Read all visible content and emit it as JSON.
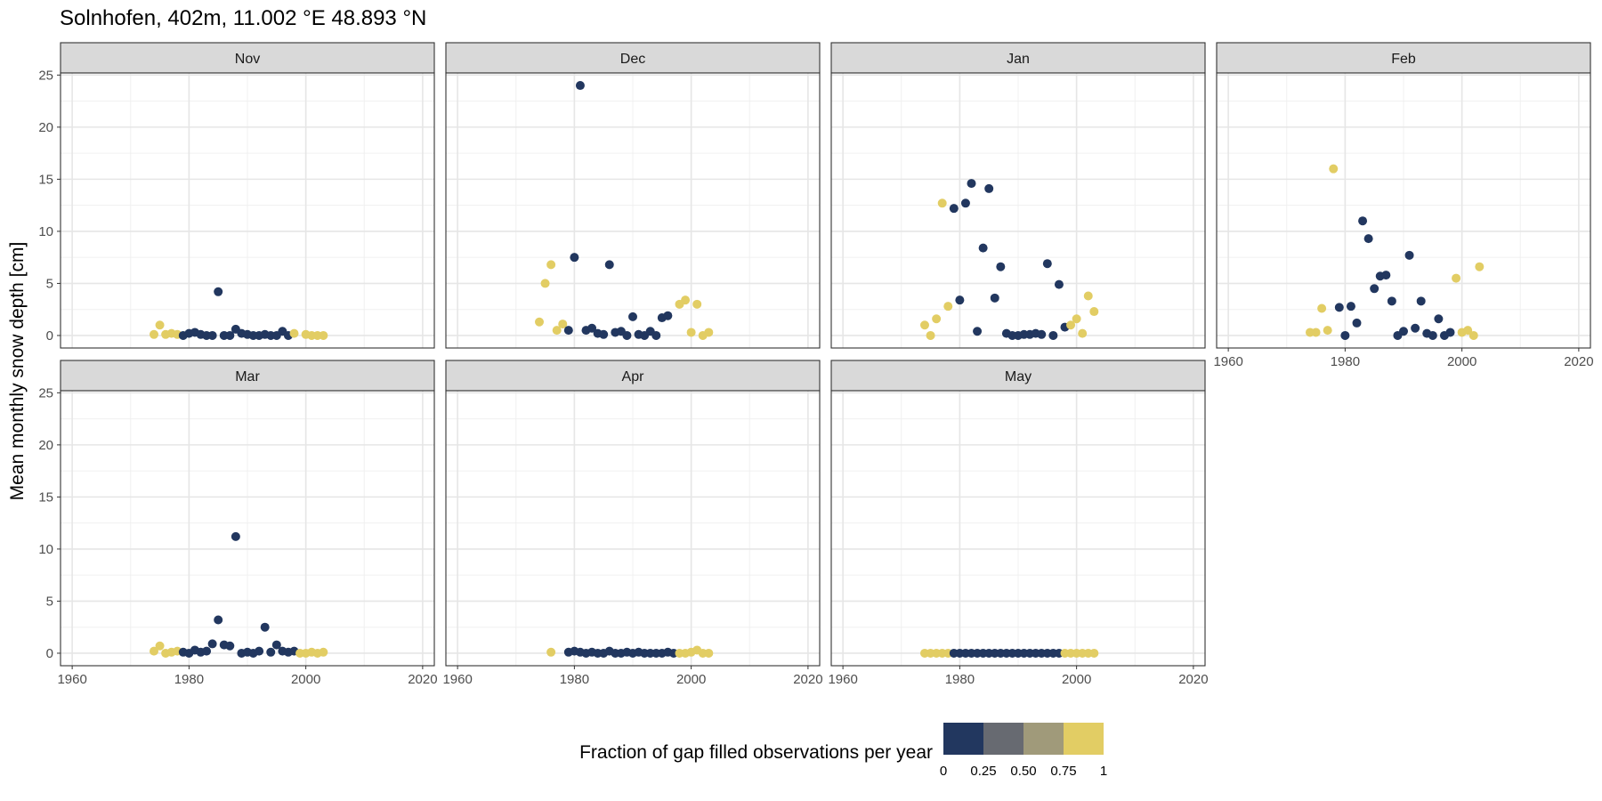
{
  "chart_data": {
    "type": "scatter",
    "title": "Solnhofen, 402m, 11.002 °E 48.893 °N",
    "ylabel": "Mean monthly snow depth [cm]",
    "xlabel": "",
    "xlim": [
      1958,
      2022
    ],
    "ylim": [
      -1.2,
      25.2
    ],
    "x_ticks": [
      1960,
      1980,
      2000,
      2020
    ],
    "y_ticks": [
      0,
      5,
      10,
      15,
      20,
      25
    ],
    "grid": true,
    "legend": {
      "title": "Fraction of gap filled observations per year",
      "placement": "bottom",
      "tick_labels": [
        "0",
        "0.25",
        "0.50",
        "0.75",
        "1"
      ],
      "colors": [
        "#22375f",
        "#676a71",
        "#a09a7a",
        "#e2cd64"
      ]
    },
    "point_colors": {
      "observed": "#22375f",
      "gap_filled": "#e2cd64"
    },
    "panels": [
      {
        "name": "Nov",
        "points": [
          [
            1974,
            0.1,
            1
          ],
          [
            1975,
            1.0,
            1
          ],
          [
            1976,
            0.1,
            1
          ],
          [
            1977,
            0.2,
            1
          ],
          [
            1978,
            0.1,
            1
          ],
          [
            1979,
            0.0,
            0
          ],
          [
            1980,
            0.2,
            0
          ],
          [
            1981,
            0.3,
            0
          ],
          [
            1982,
            0.1,
            0
          ],
          [
            1983,
            0.0,
            0
          ],
          [
            1984,
            0.0,
            0
          ],
          [
            1985,
            4.2,
            0
          ],
          [
            1986,
            0.0,
            0
          ],
          [
            1987,
            0.0,
            0
          ],
          [
            1988,
            0.6,
            0
          ],
          [
            1989,
            0.2,
            0
          ],
          [
            1990,
            0.1,
            0
          ],
          [
            1991,
            0.0,
            0
          ],
          [
            1992,
            0.0,
            0
          ],
          [
            1993,
            0.1,
            0
          ],
          [
            1994,
            0.0,
            0
          ],
          [
            1995,
            0.0,
            0
          ],
          [
            1996,
            0.4,
            0
          ],
          [
            1997,
            0.0,
            0
          ],
          [
            1998,
            0.2,
            1
          ],
          [
            2000,
            0.1,
            1
          ],
          [
            2001,
            0.0,
            1
          ],
          [
            2002,
            0.0,
            1
          ],
          [
            2003,
            0.0,
            1
          ]
        ]
      },
      {
        "name": "Dec",
        "points": [
          [
            1974,
            1.3,
            1
          ],
          [
            1975,
            5.0,
            1
          ],
          [
            1976,
            6.8,
            1
          ],
          [
            1977,
            0.5,
            1
          ],
          [
            1978,
            1.1,
            1
          ],
          [
            1979,
            0.5,
            0
          ],
          [
            1980,
            7.5,
            0
          ],
          [
            1981,
            24.0,
            0
          ],
          [
            1982,
            0.5,
            0
          ],
          [
            1983,
            0.7,
            0
          ],
          [
            1984,
            0.2,
            0
          ],
          [
            1985,
            0.1,
            0
          ],
          [
            1986,
            6.8,
            0
          ],
          [
            1987,
            0.3,
            0
          ],
          [
            1988,
            0.4,
            0
          ],
          [
            1989,
            0.0,
            0
          ],
          [
            1990,
            1.8,
            0
          ],
          [
            1991,
            0.1,
            0
          ],
          [
            1992,
            0.0,
            0
          ],
          [
            1993,
            0.4,
            0
          ],
          [
            1994,
            0.0,
            0
          ],
          [
            1995,
            1.7,
            0
          ],
          [
            1996,
            1.9,
            0
          ],
          [
            1998,
            3.0,
            1
          ],
          [
            1999,
            3.4,
            1
          ],
          [
            2000,
            0.3,
            1
          ],
          [
            2001,
            3.0,
            1
          ],
          [
            2002,
            0.0,
            1
          ],
          [
            2003,
            0.3,
            1
          ]
        ]
      },
      {
        "name": "Jan",
        "points": [
          [
            1974,
            1.0,
            1
          ],
          [
            1975,
            0.0,
            1
          ],
          [
            1976,
            1.6,
            1
          ],
          [
            1977,
            12.7,
            1
          ],
          [
            1978,
            2.8,
            1
          ],
          [
            1979,
            12.2,
            0
          ],
          [
            1980,
            3.4,
            0
          ],
          [
            1981,
            12.7,
            0
          ],
          [
            1982,
            14.6,
            0
          ],
          [
            1983,
            0.4,
            0
          ],
          [
            1984,
            8.4,
            0
          ],
          [
            1985,
            14.1,
            0
          ],
          [
            1986,
            3.6,
            0
          ],
          [
            1987,
            6.6,
            0
          ],
          [
            1988,
            0.2,
            0
          ],
          [
            1989,
            0.0,
            0
          ],
          [
            1990,
            0.0,
            0
          ],
          [
            1991,
            0.1,
            0
          ],
          [
            1992,
            0.1,
            0
          ],
          [
            1993,
            0.2,
            0
          ],
          [
            1994,
            0.1,
            0
          ],
          [
            1995,
            6.9,
            0
          ],
          [
            1996,
            0.0,
            0
          ],
          [
            1997,
            4.9,
            0
          ],
          [
            1998,
            0.8,
            0
          ],
          [
            1999,
            1.0,
            1
          ],
          [
            2000,
            1.6,
            1
          ],
          [
            2001,
            0.2,
            1
          ],
          [
            2002,
            3.8,
            1
          ],
          [
            2003,
            2.3,
            1
          ]
        ]
      },
      {
        "name": "Feb",
        "points": [
          [
            1974,
            0.3,
            1
          ],
          [
            1975,
            0.3,
            1
          ],
          [
            1976,
            2.6,
            1
          ],
          [
            1977,
            0.5,
            1
          ],
          [
            1978,
            16.0,
            1
          ],
          [
            1979,
            2.7,
            0
          ],
          [
            1980,
            0.0,
            0
          ],
          [
            1981,
            2.8,
            0
          ],
          [
            1982,
            1.2,
            0
          ],
          [
            1983,
            11.0,
            0
          ],
          [
            1984,
            9.3,
            0
          ],
          [
            1985,
            4.5,
            0
          ],
          [
            1986,
            5.7,
            0
          ],
          [
            1987,
            5.8,
            0
          ],
          [
            1988,
            3.3,
            0
          ],
          [
            1989,
            0.0,
            0
          ],
          [
            1990,
            0.4,
            0
          ],
          [
            1991,
            7.7,
            0
          ],
          [
            1992,
            0.7,
            0
          ],
          [
            1993,
            3.3,
            0
          ],
          [
            1994,
            0.2,
            0
          ],
          [
            1995,
            0.0,
            0
          ],
          [
            1996,
            1.6,
            0
          ],
          [
            1997,
            0.0,
            0
          ],
          [
            1998,
            0.3,
            0
          ],
          [
            1999,
            5.5,
            1
          ],
          [
            2000,
            0.3,
            1
          ],
          [
            2001,
            0.5,
            1
          ],
          [
            2002,
            0.0,
            1
          ],
          [
            2003,
            6.6,
            1
          ]
        ]
      },
      {
        "name": "Mar",
        "points": [
          [
            1974,
            0.2,
            1
          ],
          [
            1975,
            0.7,
            1
          ],
          [
            1976,
            0.0,
            1
          ],
          [
            1977,
            0.1,
            1
          ],
          [
            1978,
            0.2,
            1
          ],
          [
            1979,
            0.1,
            0
          ],
          [
            1980,
            0.0,
            0
          ],
          [
            1981,
            0.3,
            0
          ],
          [
            1982,
            0.1,
            0
          ],
          [
            1983,
            0.2,
            0
          ],
          [
            1984,
            0.9,
            0
          ],
          [
            1985,
            3.2,
            0
          ],
          [
            1986,
            0.8,
            0
          ],
          [
            1987,
            0.7,
            0
          ],
          [
            1988,
            11.2,
            0
          ],
          [
            1989,
            0.0,
            0
          ],
          [
            1990,
            0.1,
            0
          ],
          [
            1991,
            0.0,
            0
          ],
          [
            1992,
            0.2,
            0
          ],
          [
            1993,
            2.5,
            0
          ],
          [
            1994,
            0.1,
            0
          ],
          [
            1995,
            0.8,
            0
          ],
          [
            1996,
            0.2,
            0
          ],
          [
            1997,
            0.1,
            0
          ],
          [
            1998,
            0.2,
            0
          ],
          [
            1999,
            0.0,
            1
          ],
          [
            2000,
            0.0,
            1
          ],
          [
            2001,
            0.1,
            1
          ],
          [
            2002,
            0.0,
            1
          ],
          [
            2003,
            0.1,
            1
          ]
        ]
      },
      {
        "name": "Apr",
        "points": [
          [
            1976,
            0.1,
            1
          ],
          [
            1979,
            0.1,
            0
          ],
          [
            1980,
            0.2,
            0
          ],
          [
            1981,
            0.1,
            0
          ],
          [
            1982,
            0.0,
            0
          ],
          [
            1983,
            0.1,
            0
          ],
          [
            1984,
            0.0,
            0
          ],
          [
            1985,
            0.0,
            0
          ],
          [
            1986,
            0.2,
            0
          ],
          [
            1987,
            0.0,
            0
          ],
          [
            1988,
            0.0,
            0
          ],
          [
            1989,
            0.1,
            0
          ],
          [
            1990,
            0.0,
            0
          ],
          [
            1991,
            0.1,
            0
          ],
          [
            1992,
            0.0,
            0
          ],
          [
            1993,
            0.0,
            0
          ],
          [
            1994,
            0.0,
            0
          ],
          [
            1995,
            0.0,
            0
          ],
          [
            1996,
            0.1,
            0
          ],
          [
            1997,
            0.0,
            0
          ],
          [
            1998,
            0.0,
            1
          ],
          [
            1999,
            0.0,
            1
          ],
          [
            2000,
            0.1,
            1
          ],
          [
            2001,
            0.3,
            1
          ],
          [
            2002,
            0.0,
            1
          ],
          [
            2003,
            0.0,
            1
          ]
        ]
      },
      {
        "name": "May",
        "points": [
          [
            1974,
            0.0,
            1
          ],
          [
            1975,
            0.0,
            1
          ],
          [
            1976,
            0.0,
            1
          ],
          [
            1977,
            0.0,
            1
          ],
          [
            1978,
            0.0,
            1
          ],
          [
            1979,
            0.0,
            0
          ],
          [
            1980,
            0.0,
            0
          ],
          [
            1981,
            0.0,
            0
          ],
          [
            1982,
            0.0,
            0
          ],
          [
            1983,
            0.0,
            0
          ],
          [
            1984,
            0.0,
            0
          ],
          [
            1985,
            0.0,
            0
          ],
          [
            1986,
            0.0,
            0
          ],
          [
            1987,
            0.0,
            0
          ],
          [
            1988,
            0.0,
            0
          ],
          [
            1989,
            0.0,
            0
          ],
          [
            1990,
            0.0,
            0
          ],
          [
            1991,
            0.0,
            0
          ],
          [
            1992,
            0.0,
            0
          ],
          [
            1993,
            0.0,
            0
          ],
          [
            1994,
            0.0,
            0
          ],
          [
            1995,
            0.0,
            0
          ],
          [
            1996,
            0.0,
            0
          ],
          [
            1997,
            0.0,
            0
          ],
          [
            1998,
            0.0,
            1
          ],
          [
            1999,
            0.0,
            1
          ],
          [
            2000,
            0.0,
            1
          ],
          [
            2001,
            0.0,
            1
          ],
          [
            2002,
            0.0,
            1
          ],
          [
            2003,
            0.0,
            1
          ]
        ]
      }
    ]
  }
}
